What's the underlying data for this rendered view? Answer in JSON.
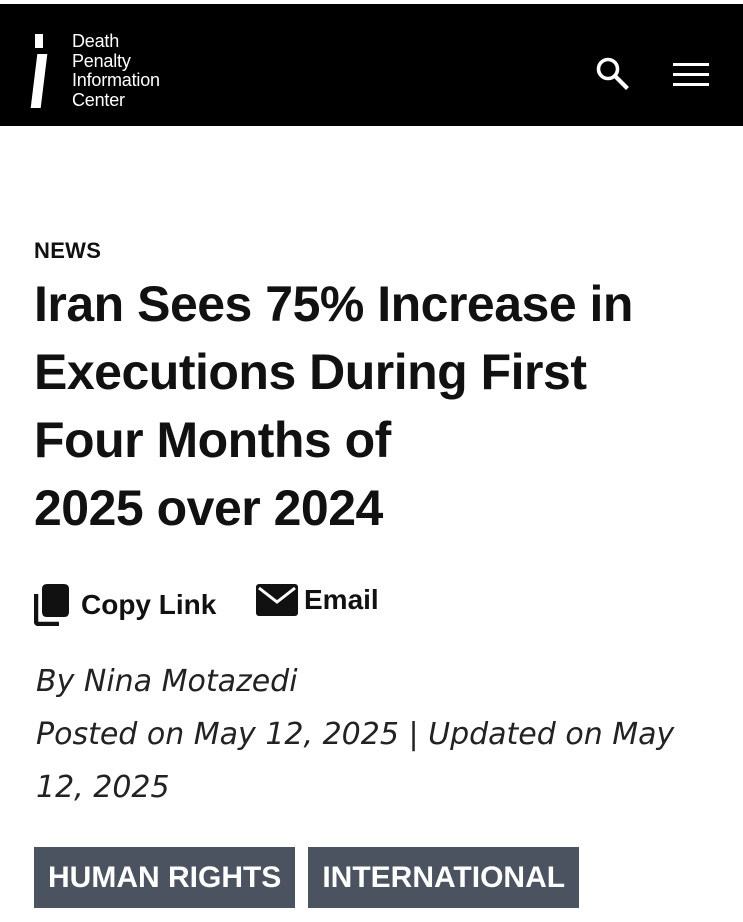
{
  "header": {
    "logo_lines": [
      "Death",
      "Penalty",
      "Information",
      "Center"
    ],
    "search_icon": "search-icon",
    "menu_icon": "hamburger-menu-icon"
  },
  "article": {
    "category": "NEWS",
    "title_lines": [
      "Iran Sees 75% Increase in",
      "Executions During First",
      "Four Months of",
      "2025 over 2024"
    ],
    "share": {
      "copy_label": "Copy Link",
      "copy_icon": "copy-icon",
      "email_label": "Email",
      "email_icon": "envelope-icon"
    },
    "byline": "By Nina Motazedi",
    "dates_line1": "Posted on May 12, 2025 | Updated on May",
    "dates_line2": "12, 2025",
    "tags": [
      "HUMAN RIGHTS",
      "INTERNATIONAL"
    ]
  },
  "colors": {
    "header_bg": "#000000",
    "tag_bg": "#4b5260",
    "text": "#111111"
  }
}
